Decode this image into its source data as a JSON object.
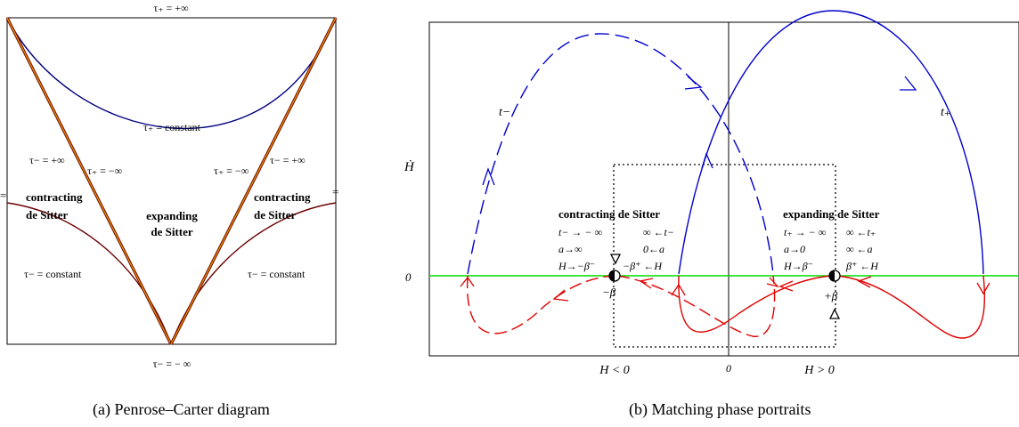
{
  "left_panel": {
    "labels": {
      "top": "τ₊ = +∞",
      "tau_plus_constant": "τ₊ = constant",
      "tau_minus_plus_inf_left": "τ− = +∞",
      "tau_plus_minus_inf_left": "τ₊ = −∞",
      "tau_plus_minus_inf_right": "τ₊ = −∞",
      "tau_minus_plus_inf_right": "τ− = +∞",
      "contracting_left_1": "contracting",
      "contracting_left_2": "de Sitter",
      "expanding_1": "expanding",
      "expanding_2": "de Sitter",
      "contracting_right_1": "contracting",
      "contracting_right_2": "de Sitter",
      "tau_minus_constant_left": "τ− = constant",
      "tau_minus_constant_right": "τ− = constant",
      "bottom": "τ− = − ∞",
      "edge_left": "=",
      "edge_right": "="
    },
    "caption": "(a)  Penrose–Carter diagram"
  },
  "right_panel": {
    "y_axis_label": "Ḣ",
    "y_zero": "0",
    "x_left": "H < 0",
    "x_zero": "0",
    "x_right": "H > 0",
    "curve_t_minus": "t−",
    "curve_t_plus": "t₊",
    "contracting": {
      "title": "contracting de Sitter",
      "l1": "t− → − ∞",
      "l2": "a→∞",
      "l3": "H→−β⁻",
      "r1": "∞ ←t−",
      "r2": "0←a",
      "r3": "−β⁺ ←H",
      "pt": "−β"
    },
    "expanding": {
      "title": "expanding de Sitter",
      "l1": "t₊ → − ∞",
      "l2": "a→0",
      "l3": "H→β⁻",
      "r1": "∞ ←t₊",
      "r2": "∞ ←a",
      "r3": "β⁺ ←H",
      "pt": "+β"
    },
    "caption": "(b)  Matching phase portraits"
  },
  "colors": {
    "blue": "#0000cc",
    "red": "#e00000",
    "green": "#00dd00",
    "brown": "#8b0000",
    "orange": "#e08a00"
  }
}
